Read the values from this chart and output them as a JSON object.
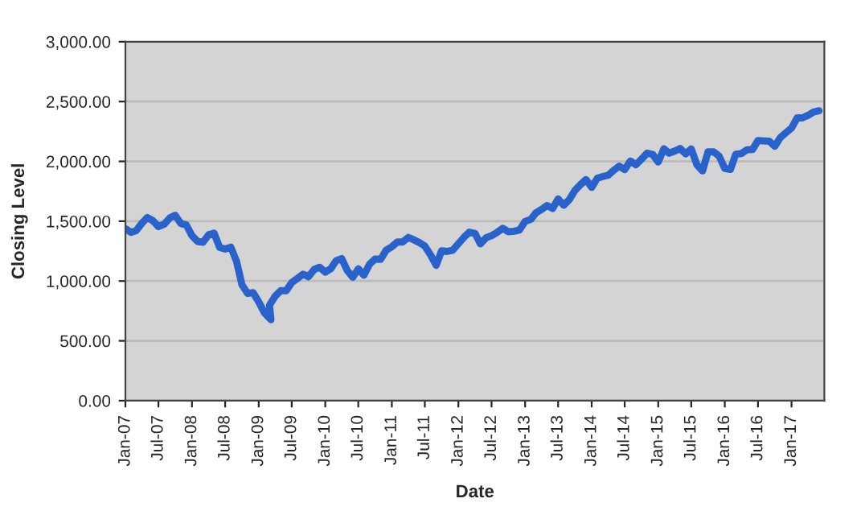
{
  "chart_data": {
    "type": "line",
    "xlabel": "Date",
    "ylabel": "Closing Level",
    "x": [
      "2007-01",
      "2007-02",
      "2007-03",
      "2007-04",
      "2007-05",
      "2007-06",
      "2007-07",
      "2007-08",
      "2007-09",
      "2007-10",
      "2007-11",
      "2007-12",
      "2008-01",
      "2008-02",
      "2008-03",
      "2008-04",
      "2008-05",
      "2008-06",
      "2008-07",
      "2008-08",
      "2008-09",
      "2008-10",
      "2008-11",
      "2008-12",
      "2009-01",
      "2009-02",
      "2009-03-09",
      "2009-03",
      "2009-04",
      "2009-05",
      "2009-06",
      "2009-07",
      "2009-08",
      "2009-09",
      "2009-10",
      "2009-11",
      "2009-12",
      "2010-01",
      "2010-02",
      "2010-03",
      "2010-04",
      "2010-05",
      "2010-06",
      "2010-07",
      "2010-08",
      "2010-09",
      "2010-10",
      "2010-11",
      "2010-12",
      "2011-01",
      "2011-02",
      "2011-03",
      "2011-04",
      "2011-05",
      "2011-06",
      "2011-07",
      "2011-08",
      "2011-09",
      "2011-10",
      "2011-11",
      "2011-12",
      "2012-01",
      "2012-02",
      "2012-03",
      "2012-04",
      "2012-05",
      "2012-06",
      "2012-07",
      "2012-08",
      "2012-09",
      "2012-10",
      "2012-11",
      "2012-12",
      "2013-01",
      "2013-02",
      "2013-03",
      "2013-04",
      "2013-05",
      "2013-06",
      "2013-07",
      "2013-08",
      "2013-09",
      "2013-10",
      "2013-11",
      "2013-12",
      "2014-01",
      "2014-02",
      "2014-03",
      "2014-04",
      "2014-05",
      "2014-06",
      "2014-07",
      "2014-08",
      "2014-09",
      "2014-10",
      "2014-11",
      "2014-12",
      "2015-01",
      "2015-02",
      "2015-03",
      "2015-04",
      "2015-05",
      "2015-06",
      "2015-07",
      "2015-08",
      "2015-09",
      "2015-10",
      "2015-11",
      "2015-12",
      "2016-01",
      "2016-02",
      "2016-03",
      "2016-04",
      "2016-05",
      "2016-06",
      "2016-07",
      "2016-08",
      "2016-09",
      "2016-10",
      "2016-11",
      "2016-12",
      "2017-01",
      "2017-02",
      "2017-03",
      "2017-04",
      "2017-05",
      "2017-06"
    ],
    "series": [
      {
        "color": "#2a62cc",
        "values": [
          1438,
          1407,
          1421,
          1482,
          1531,
          1503,
          1455,
          1474,
          1527,
          1549,
          1481,
          1468,
          1379,
          1331,
          1323,
          1386,
          1400,
          1280,
          1267,
          1283,
          1166,
          969,
          896,
          903,
          826,
          735,
          677,
          798,
          873,
          919,
          919,
          987,
          1021,
          1057,
          1036,
          1096,
          1115,
          1074,
          1104,
          1169,
          1187,
          1089,
          1031,
          1102,
          1049,
          1141,
          1183,
          1181,
          1258,
          1286,
          1327,
          1326,
          1364,
          1345,
          1321,
          1292,
          1219,
          1131,
          1253,
          1247,
          1258,
          1312,
          1366,
          1408,
          1398,
          1310,
          1362,
          1379,
          1407,
          1441,
          1412,
          1416,
          1426,
          1498,
          1515,
          1569,
          1598,
          1631,
          1606,
          1686,
          1633,
          1682,
          1757,
          1806,
          1848,
          1783,
          1859,
          1872,
          1884,
          1924,
          1960,
          1931,
          2003,
          1972,
          2018,
          2068,
          2059,
          1995,
          2105,
          2068,
          2086,
          2107,
          2063,
          2104,
          1972,
          1920,
          2079,
          2080,
          2044,
          1940,
          1932,
          2060,
          2065,
          2097,
          2099,
          2174,
          2171,
          2168,
          2126,
          2199,
          2239,
          2279,
          2364,
          2363,
          2384,
          2412,
          2423
        ]
      }
    ],
    "xlim": [
      "2007-01-01",
      "2017-06-30"
    ],
    "xticks": [
      {
        "value": "2007-01-01",
        "label": "Jan-07"
      },
      {
        "value": "2007-07-01",
        "label": "Jul-07"
      },
      {
        "value": "2008-01-01",
        "label": "Jan-08"
      },
      {
        "value": "2008-07-01",
        "label": "Jul-08"
      },
      {
        "value": "2009-01-01",
        "label": "Jan-09"
      },
      {
        "value": "2009-07-01",
        "label": "Jul-09"
      },
      {
        "value": "2010-01-01",
        "label": "Jan-10"
      },
      {
        "value": "2010-07-01",
        "label": "Jul-10"
      },
      {
        "value": "2011-01-01",
        "label": "Jan-11"
      },
      {
        "value": "2011-07-01",
        "label": "Jul-11"
      },
      {
        "value": "2012-01-01",
        "label": "Jan-12"
      },
      {
        "value": "2012-07-01",
        "label": "Jul-12"
      },
      {
        "value": "2013-01-01",
        "label": "Jan-13"
      },
      {
        "value": "2013-07-01",
        "label": "Jul-13"
      },
      {
        "value": "2014-01-01",
        "label": "Jan-14"
      },
      {
        "value": "2014-07-01",
        "label": "Jul-14"
      },
      {
        "value": "2015-01-01",
        "label": "Jan-15"
      },
      {
        "value": "2015-07-01",
        "label": "Jul-15"
      },
      {
        "value": "2016-01-01",
        "label": "Jan-16"
      },
      {
        "value": "2016-07-01",
        "label": "Jul-16"
      },
      {
        "value": "2017-01-01",
        "label": "Jan-17"
      }
    ],
    "ylim": [
      0,
      3000
    ],
    "yticks": [
      {
        "value": 0,
        "label": "0.00"
      },
      {
        "value": 500,
        "label": "500.00"
      },
      {
        "value": 1000,
        "label": "1,000.00"
      },
      {
        "value": 1500,
        "label": "1,500.00"
      },
      {
        "value": 2000,
        "label": "2,000.00"
      },
      {
        "value": 2500,
        "label": "2,500.00"
      },
      {
        "value": 3000,
        "label": "3,000.00"
      }
    ],
    "grid": "y",
    "line_style": "solid",
    "marker": "none"
  }
}
